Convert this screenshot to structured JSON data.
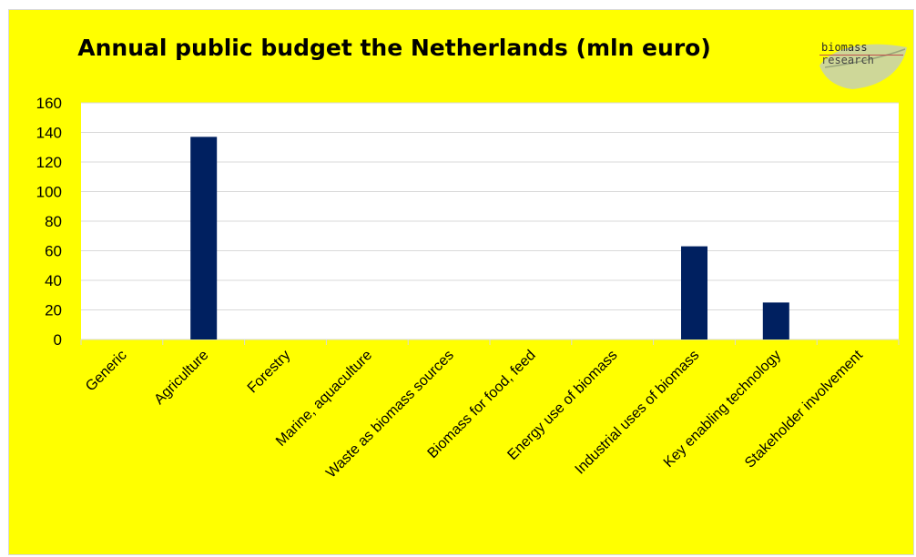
{
  "chart_data": {
    "type": "bar",
    "title": "Annual public budget the Netherlands (mln euro)",
    "categories": [
      "Generic",
      "Agriculture",
      "Forestry",
      "Marine, aquaculture",
      "Waste as biomass sources",
      "Biomass for food, feed",
      "Energy use of biomass",
      "Industrial uses of biomass",
      "Key enabling technology",
      "Stakeholder involvement"
    ],
    "values": [
      0,
      137,
      0,
      0,
      0,
      0,
      0,
      63,
      25,
      0
    ],
    "ylim": [
      0,
      160
    ],
    "yticks": [
      0,
      20,
      40,
      60,
      80,
      100,
      120,
      140,
      160
    ],
    "grid": true,
    "colors": {
      "bar": "#002060",
      "background": "#ffff00",
      "plot_area": "#ffffff",
      "grid": "#d9d9d9"
    }
  },
  "logo": {
    "line1": "biomass",
    "line2": "research"
  }
}
